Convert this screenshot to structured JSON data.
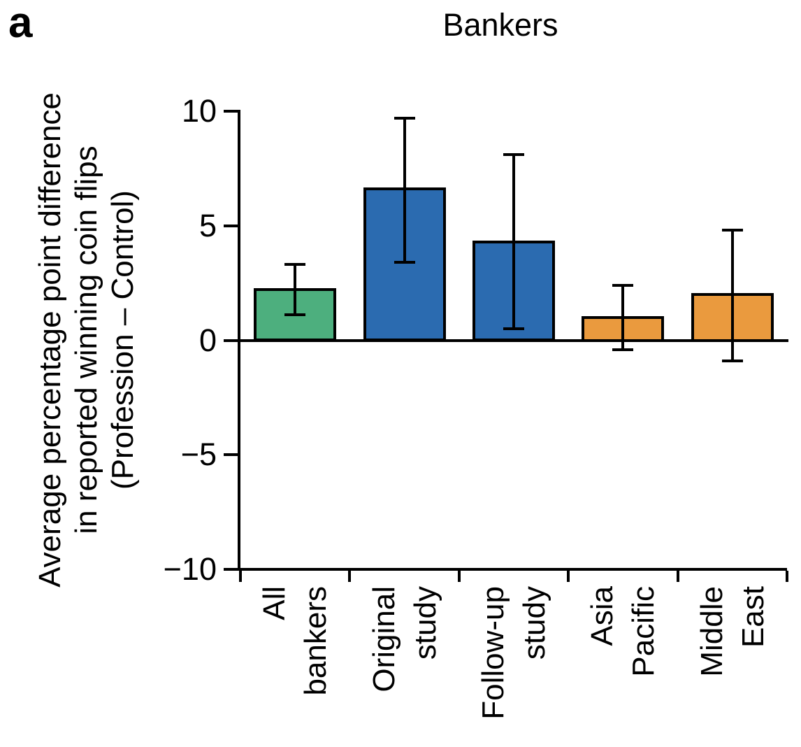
{
  "panel_label": "a",
  "chart_data": {
    "type": "bar",
    "title": "Bankers",
    "categories": [
      "All bankers",
      "Original study",
      "Follow-up study",
      "Asia Pacific",
      "Middle East"
    ],
    "category_label_lines": [
      [
        "All",
        "bankers"
      ],
      [
        "Original",
        "study"
      ],
      [
        "Follow-up",
        "study"
      ],
      [
        "Asia",
        "Pacific"
      ],
      [
        "Middle",
        "East"
      ]
    ],
    "values": [
      2.2,
      6.6,
      4.3,
      1.0,
      2.0
    ],
    "error_low": [
      1.1,
      3.4,
      0.5,
      -0.4,
      -0.9
    ],
    "error_high": [
      3.3,
      9.7,
      8.1,
      2.4,
      4.8
    ],
    "bar_colors": [
      "#4DAF7E",
      "#2B6BB0",
      "#2B6BB0",
      "#EA9A3E",
      "#EA9A3E"
    ],
    "bar_edge_color": "#000000",
    "error_color": "#000000",
    "axis_color": "#000000",
    "ylabel_lines": [
      "Average percentage point difference",
      "in reported winning coin flips",
      "(Profession – Control)"
    ],
    "xlabel": "",
    "ylim": [
      -10,
      10
    ],
    "yticks": [
      10,
      5,
      0,
      -5,
      -10
    ],
    "baseline": 0,
    "grid": false,
    "legend": null
  }
}
